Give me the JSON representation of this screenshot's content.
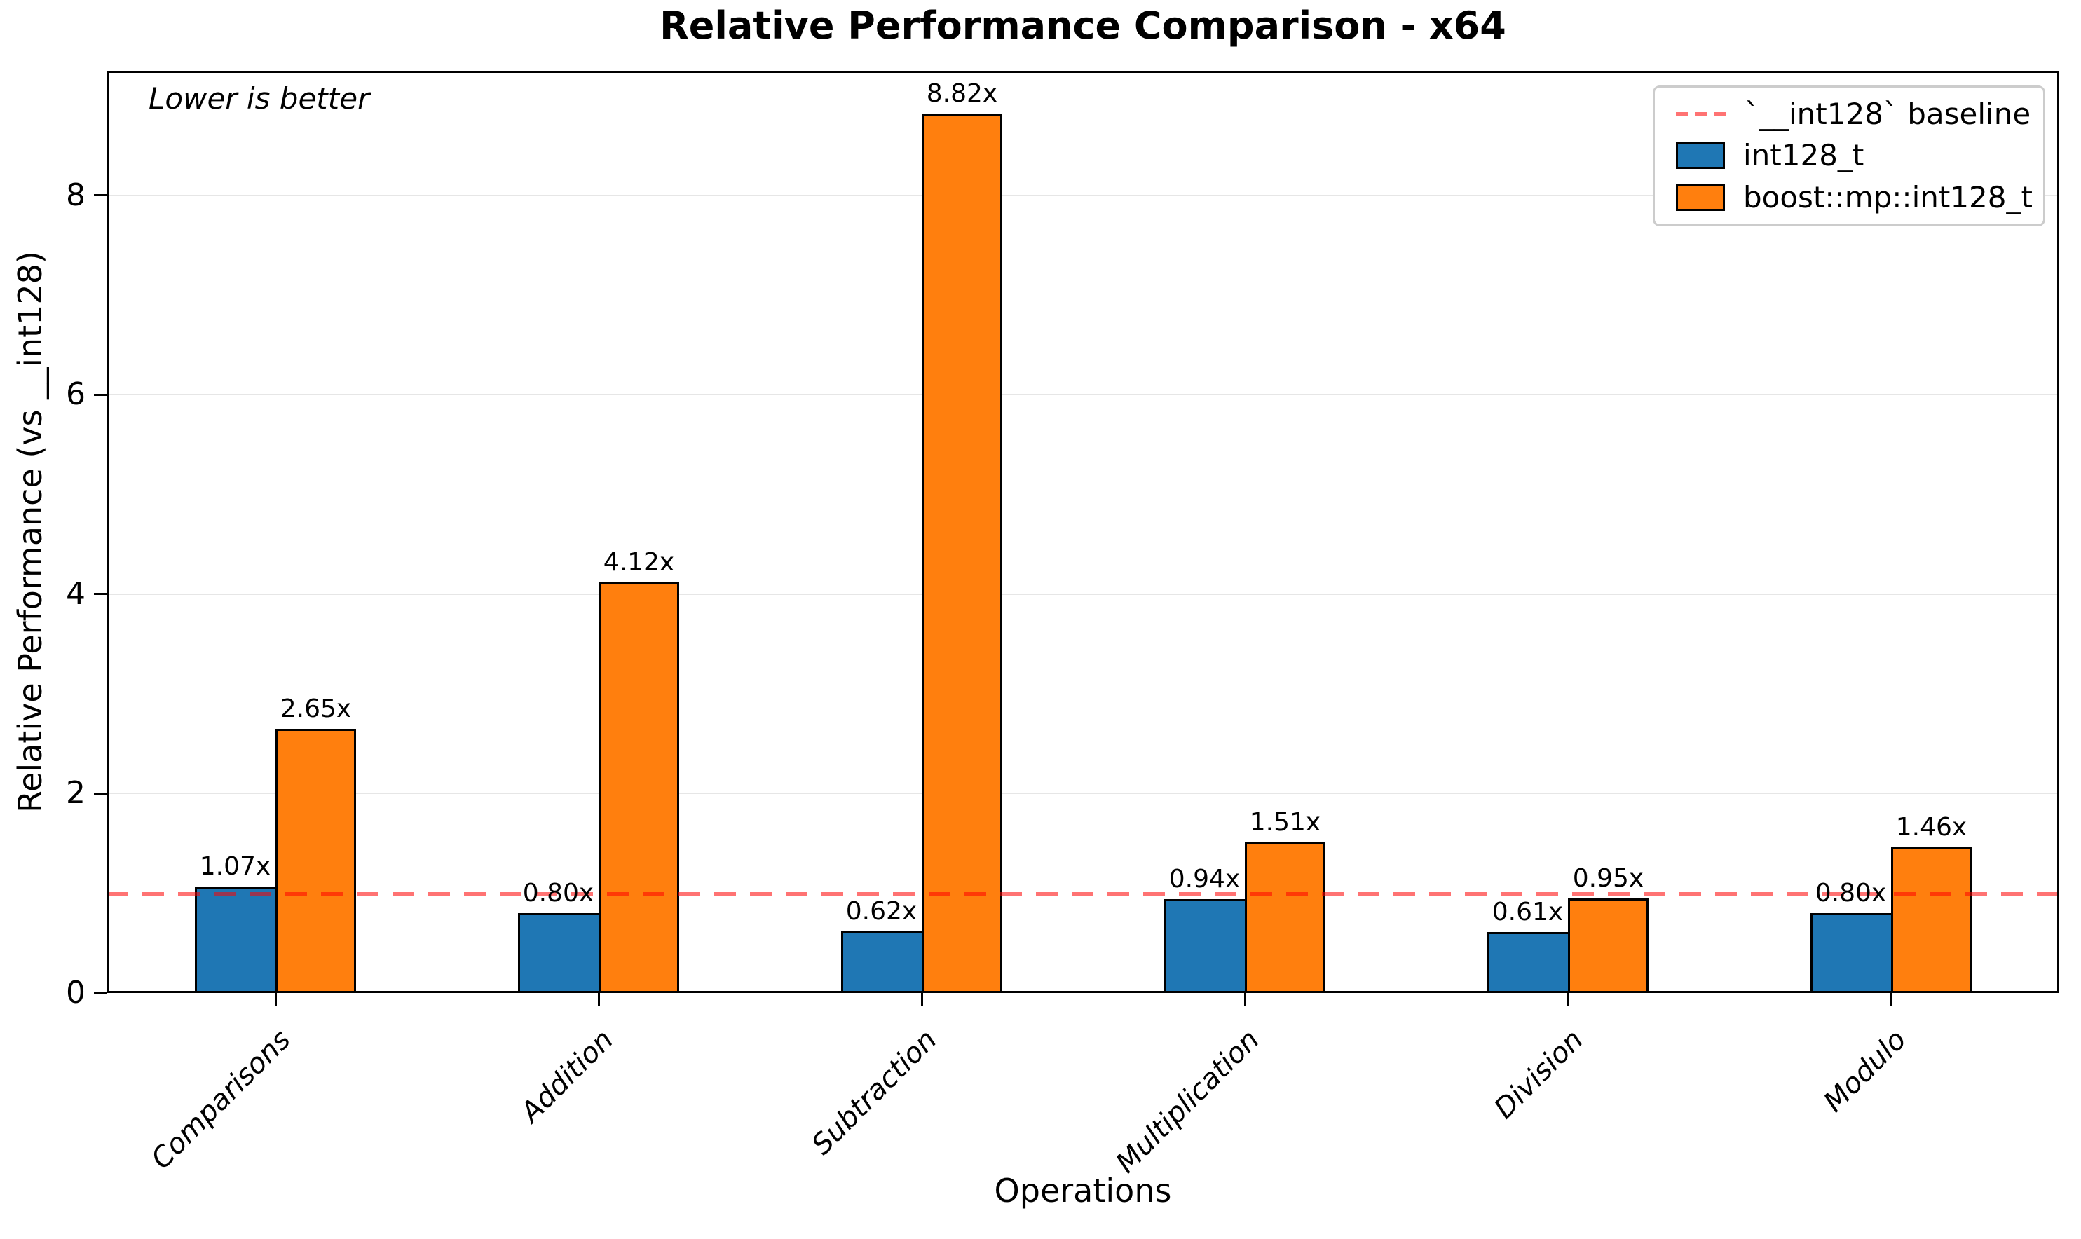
{
  "header": {
    "title": "Relative Performance Comparison - x64"
  },
  "plot": {
    "annotation": "Lower is better"
  },
  "axes": {
    "xlabel": "Operations",
    "ylabel": "Relative Performance (vs __int128)"
  },
  "legend": {
    "items": [
      {
        "swatch": "dashed-line",
        "label": "`__int128` baseline",
        "color": "#ff0000"
      },
      {
        "swatch": "box",
        "label": "int128_t",
        "color": "#1f77b4"
      },
      {
        "swatch": "box",
        "label": "boost::mp::int128_t",
        "color": "#ff7f0e"
      }
    ]
  },
  "chart_data": {
    "type": "bar",
    "title": "Relative Performance Comparison - x64",
    "xlabel": "Operations",
    "ylabel": "Relative Performance (vs __int128)",
    "categories": [
      "Comparisons",
      "Addition",
      "Subtraction",
      "Multiplication",
      "Division",
      "Modulo"
    ],
    "series": [
      {
        "name": "int128_t",
        "color": "#1f77b4",
        "values": [
          1.07,
          0.8,
          0.62,
          0.94,
          0.61,
          0.8
        ],
        "labels": [
          "1.07x",
          "0.80x",
          "0.62x",
          "0.94x",
          "0.61x",
          "0.80x"
        ]
      },
      {
        "name": "boost::mp::int128_t",
        "color": "#ff7f0e",
        "values": [
          2.65,
          4.12,
          8.82,
          1.51,
          0.95,
          1.46
        ],
        "labels": [
          "2.65x",
          "4.12x",
          "8.82x",
          "1.51x",
          "0.95x",
          "1.46x"
        ]
      }
    ],
    "baseline": {
      "value": 1.0,
      "label": "`__int128` baseline",
      "color": "#ff0000",
      "style": "dashed"
    },
    "annotation": "Lower is better",
    "yticks": [
      0,
      2,
      4,
      6,
      8
    ],
    "ylim": [
      0,
      9.25
    ],
    "grid": true,
    "legend_position": "upper right"
  }
}
